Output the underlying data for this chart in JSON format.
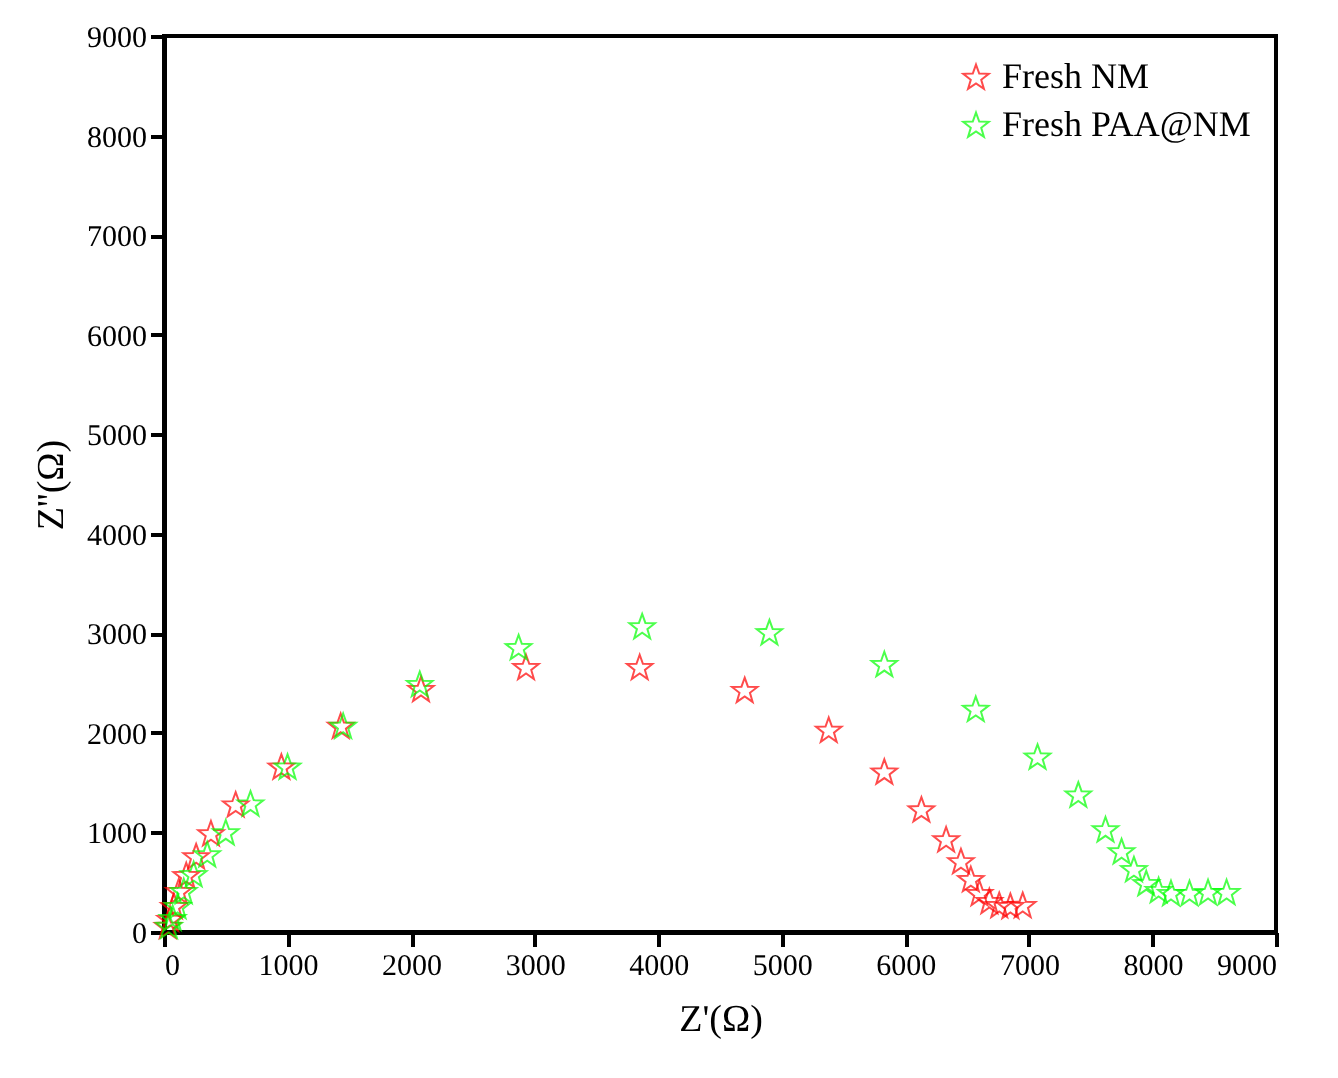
{
  "chart_data": {
    "type": "scatter",
    "xlabel": "Z'(Ω)",
    "ylabel": "Z''(Ω)",
    "xlim": [
      0,
      9000
    ],
    "xticks": [
      0,
      1000,
      2000,
      3000,
      4000,
      5000,
      6000,
      7000,
      8000,
      9000
    ],
    "ylim": [
      0,
      9000
    ],
    "yticks": [
      0,
      1000,
      2000,
      3000,
      4000,
      5000,
      6000,
      7000,
      8000,
      9000
    ],
    "grid": false,
    "legend": "top right",
    "marker": "star",
    "series": [
      {
        "name": "Fresh NM",
        "color": "#ff0000",
        "x": [
          30,
          50,
          80,
          120,
          180,
          260,
          380,
          580,
          950,
          1430,
          2080,
          2930,
          3850,
          4700,
          5380,
          5830,
          6130,
          6330,
          6450,
          6530,
          6600,
          6680,
          6760,
          6850,
          6950
        ],
        "values": [
          50,
          120,
          250,
          400,
          560,
          750,
          980,
          1270,
          1650,
          2060,
          2430,
          2650,
          2650,
          2420,
          2020,
          1600,
          1220,
          920,
          700,
          520,
          380,
          300,
          260,
          250,
          260
        ]
      },
      {
        "name": "Fresh PAA@NM",
        "color": "#00ff00",
        "x": [
          40,
          70,
          110,
          160,
          240,
          350,
          500,
          700,
          1000,
          1450,
          2070,
          2870,
          3870,
          4900,
          5830,
          6570,
          7070,
          7400,
          7620,
          7750,
          7850,
          7950,
          8050,
          8150,
          8300,
          8450,
          8600
        ],
        "values": [
          50,
          130,
          250,
          400,
          570,
          770,
          990,
          1280,
          1650,
          2060,
          2480,
          2850,
          3060,
          3000,
          2680,
          2230,
          1750,
          1370,
          1020,
          800,
          620,
          480,
          410,
          380,
          380,
          390,
          390
        ]
      }
    ]
  }
}
